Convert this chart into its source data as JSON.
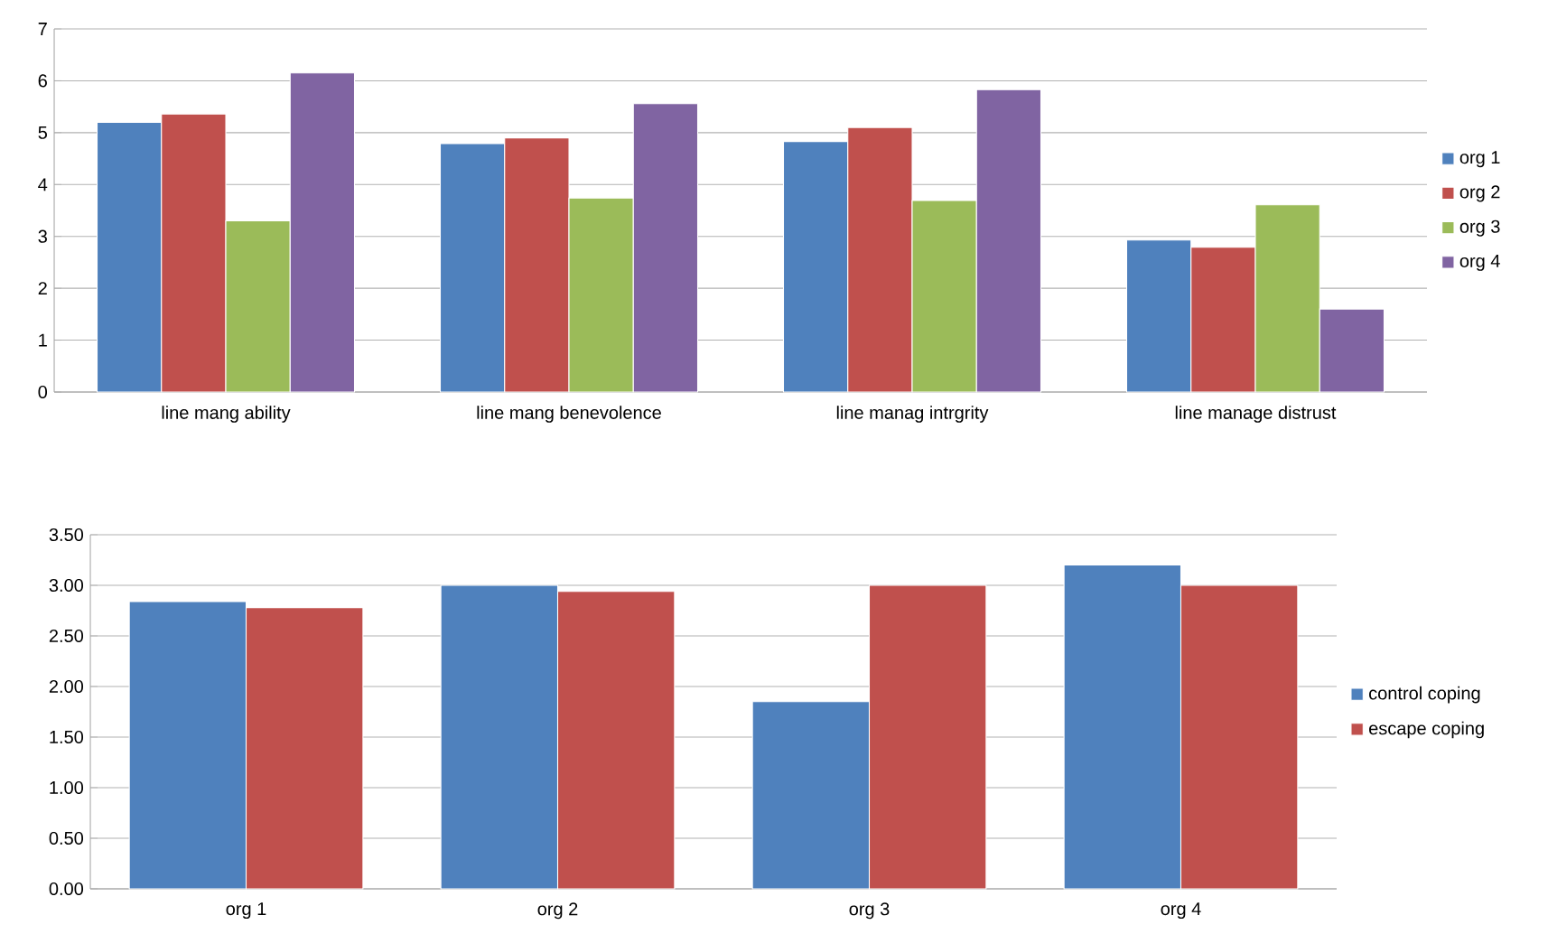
{
  "chart_data": [
    {
      "type": "bar",
      "categories": [
        "line mang ability",
        "line mang benevolence",
        "line manag intrgrity",
        "line manage distrust"
      ],
      "series": [
        {
          "name": "org 1",
          "color": "#4f81bd",
          "values": [
            5.2,
            4.79,
            4.83,
            2.93
          ]
        },
        {
          "name": "org 2",
          "color": "#c0504d",
          "values": [
            5.36,
            4.9,
            5.1,
            2.79
          ]
        },
        {
          "name": "org 3",
          "color": "#9bbb59",
          "values": [
            3.3,
            3.74,
            3.69,
            3.61
          ]
        },
        {
          "name": "org 4",
          "color": "#8064a2",
          "values": [
            6.15,
            5.56,
            5.83,
            1.6
          ]
        }
      ],
      "ylim": [
        0,
        7
      ],
      "yticks": [
        0,
        1,
        2,
        3,
        4,
        5,
        6,
        7
      ],
      "grid": "y",
      "legend": "right"
    },
    {
      "type": "bar",
      "categories": [
        "org 1",
        "org 2",
        "org 3",
        "org 4"
      ],
      "series": [
        {
          "name": "control coping",
          "color": "#4f81bd",
          "values": [
            2.84,
            3.0,
            1.85,
            3.2
          ]
        },
        {
          "name": "escape coping",
          "color": "#c0504d",
          "values": [
            2.78,
            2.94,
            3.0,
            3.0
          ]
        }
      ],
      "ylim": [
        0,
        3.5
      ],
      "yticks": [
        {
          "value": 0,
          "label": "0.00"
        },
        {
          "value": 0.5,
          "label": "0.50"
        },
        {
          "value": 1,
          "label": "1.00"
        },
        {
          "value": 1.5,
          "label": "1.50"
        },
        {
          "value": 2,
          "label": "2.00"
        },
        {
          "value": 2.5,
          "label": "2.50"
        },
        {
          "value": 3,
          "label": "3.00"
        },
        {
          "value": 3.5,
          "label": "3.50"
        }
      ],
      "grid": "y",
      "legend": "right"
    }
  ]
}
